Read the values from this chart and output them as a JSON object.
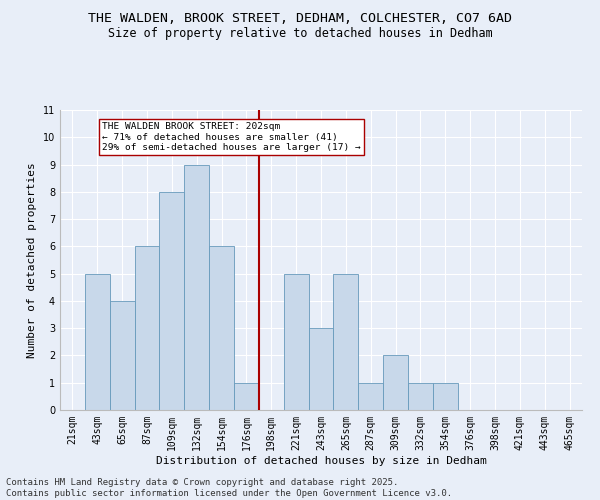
{
  "title": "THE WALDEN, BROOK STREET, DEDHAM, COLCHESTER, CO7 6AD",
  "subtitle": "Size of property relative to detached houses in Dedham",
  "xlabel": "Distribution of detached houses by size in Dedham",
  "ylabel": "Number of detached properties",
  "footer": "Contains HM Land Registry data © Crown copyright and database right 2025.\nContains public sector information licensed under the Open Government Licence v3.0.",
  "bins": [
    "21sqm",
    "43sqm",
    "65sqm",
    "87sqm",
    "109sqm",
    "132sqm",
    "154sqm",
    "176sqm",
    "198sqm",
    "221sqm",
    "243sqm",
    "265sqm",
    "287sqm",
    "309sqm",
    "332sqm",
    "354sqm",
    "376sqm",
    "398sqm",
    "421sqm",
    "443sqm",
    "465sqm"
  ],
  "values": [
    0,
    5,
    4,
    6,
    8,
    9,
    6,
    1,
    0,
    5,
    3,
    5,
    1,
    2,
    1,
    1,
    0,
    0,
    0,
    0,
    0
  ],
  "bar_color": "#c8d8ea",
  "bar_edge_color": "#6699bb",
  "vline_color": "#aa0000",
  "annotation_text": "THE WALDEN BROOK STREET: 202sqm\n← 71% of detached houses are smaller (41)\n29% of semi-detached houses are larger (17) →",
  "annotation_box_color": "#ffffff",
  "annotation_box_edge": "#aa0000",
  "ylim": [
    0,
    11
  ],
  "yticks": [
    0,
    1,
    2,
    3,
    4,
    5,
    6,
    7,
    8,
    9,
    10,
    11
  ],
  "bg_color": "#e8eef8",
  "plot_bg_color": "#e8eef8",
  "grid_color": "#ffffff",
  "title_fontsize": 9.5,
  "subtitle_fontsize": 8.5,
  "xlabel_fontsize": 8,
  "ylabel_fontsize": 8,
  "tick_fontsize": 7,
  "footer_fontsize": 6.5
}
